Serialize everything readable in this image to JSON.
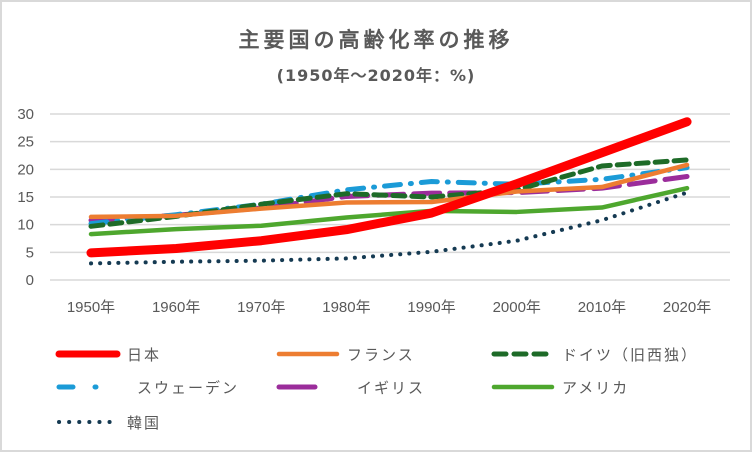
{
  "chart_data": {
    "type": "line",
    "title": "主要国の高齢化率の推移",
    "subtitle": "(1950年～2020年：%)",
    "xlabel": "",
    "ylabel": "",
    "ylim": [
      0,
      30
    ],
    "yticks": [
      "0",
      "5",
      "10",
      "15",
      "20",
      "25",
      "30"
    ],
    "categories": [
      "1950年",
      "1960年",
      "1970年",
      "1980年",
      "1990年",
      "2000年",
      "2010年",
      "2020年"
    ],
    "grid": true,
    "legend_position": "bottom",
    "series": [
      {
        "name": "日本",
        "color": "#ff0000",
        "style": "solid-thick",
        "values": [
          4.9,
          5.7,
          7.1,
          9.1,
          12.1,
          17.4,
          23.0,
          28.6
        ]
      },
      {
        "name": "フランス",
        "color": "#ed7d31",
        "style": "solid",
        "values": [
          11.4,
          11.6,
          12.9,
          14.0,
          14.1,
          16.0,
          16.8,
          20.8
        ]
      },
      {
        "name": "ドイツ（旧西独）",
        "color": "#1e6b28",
        "style": "dash",
        "values": [
          9.7,
          11.5,
          13.7,
          15.6,
          15.0,
          16.3,
          20.6,
          21.7
        ]
      },
      {
        "name": "スウェーデン",
        "color": "#1b9bd7",
        "style": "dashdot",
        "values": [
          10.2,
          11.8,
          13.7,
          16.3,
          17.8,
          17.3,
          18.2,
          20.3
        ]
      },
      {
        "name": "イギリス",
        "color": "#9b2d9b",
        "style": "longdash",
        "values": [
          10.8,
          11.7,
          13.0,
          15.1,
          15.7,
          15.8,
          16.6,
          18.7
        ]
      },
      {
        "name": "アメリカ",
        "color": "#4ea72e",
        "style": "solid",
        "values": [
          8.3,
          9.2,
          9.8,
          11.3,
          12.5,
          12.3,
          13.1,
          16.6
        ]
      },
      {
        "name": "韓国",
        "color": "#153a52",
        "style": "dot",
        "values": [
          3.0,
          3.3,
          3.5,
          3.9,
          5.1,
          7.1,
          10.8,
          15.8
        ]
      }
    ]
  }
}
